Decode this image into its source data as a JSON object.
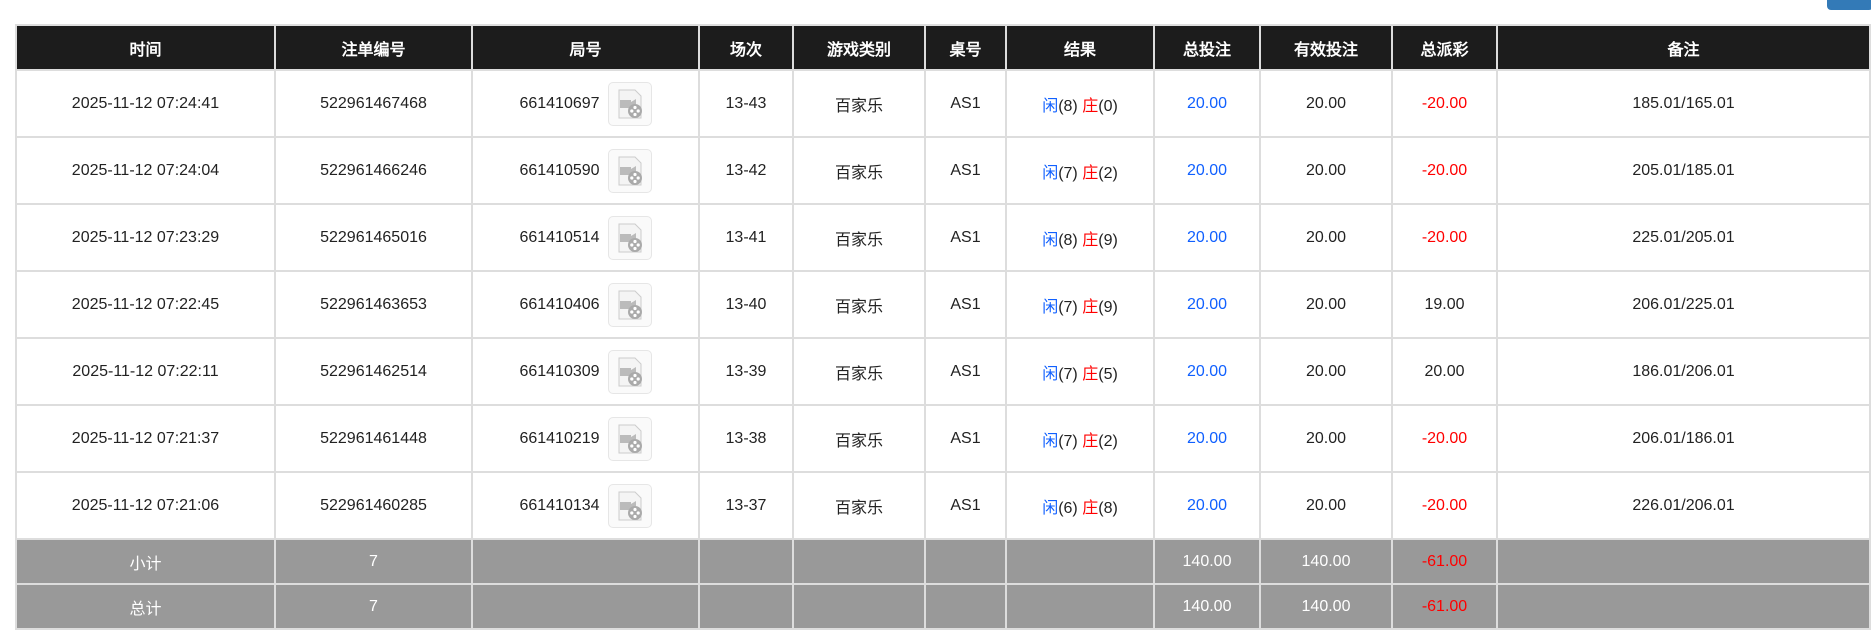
{
  "headers": [
    "时间",
    "注单编号",
    "局号",
    "场次",
    "游戏类别",
    "桌号",
    "结果",
    "总投注",
    "有效投注",
    "总派彩",
    "备注"
  ],
  "rows": [
    {
      "time": "2025-11-12 07:24:41",
      "bet_id": "522961467468",
      "round": "661410697",
      "shoe": "13-43",
      "game": "百家乐",
      "table": "AS1",
      "player_label": "闲",
      "player": "(8)",
      "banker_label": "庄",
      "banker": "(0)",
      "total_bet": "20.00",
      "valid_bet": "20.00",
      "payout": "-20.00",
      "payout_negative": true,
      "note": "185.01/165.01"
    },
    {
      "time": "2025-11-12 07:24:04",
      "bet_id": "522961466246",
      "round": "661410590",
      "shoe": "13-42",
      "game": "百家乐",
      "table": "AS1",
      "player_label": "闲",
      "player": "(7)",
      "banker_label": "庄",
      "banker": "(2)",
      "total_bet": "20.00",
      "valid_bet": "20.00",
      "payout": "-20.00",
      "payout_negative": true,
      "note": "205.01/185.01"
    },
    {
      "time": "2025-11-12 07:23:29",
      "bet_id": "522961465016",
      "round": "661410514",
      "shoe": "13-41",
      "game": "百家乐",
      "table": "AS1",
      "player_label": "闲",
      "player": "(8)",
      "banker_label": "庄",
      "banker": "(9)",
      "total_bet": "20.00",
      "valid_bet": "20.00",
      "payout": "-20.00",
      "payout_negative": true,
      "note": "225.01/205.01"
    },
    {
      "time": "2025-11-12 07:22:45",
      "bet_id": "522961463653",
      "round": "661410406",
      "shoe": "13-40",
      "game": "百家乐",
      "table": "AS1",
      "player_label": "闲",
      "player": "(7)",
      "banker_label": "庄",
      "banker": "(9)",
      "total_bet": "20.00",
      "valid_bet": "20.00",
      "payout": "19.00",
      "payout_negative": false,
      "note": "206.01/225.01"
    },
    {
      "time": "2025-11-12 07:22:11",
      "bet_id": "522961462514",
      "round": "661410309",
      "shoe": "13-39",
      "game": "百家乐",
      "table": "AS1",
      "player_label": "闲",
      "player": "(7)",
      "banker_label": "庄",
      "banker": "(5)",
      "total_bet": "20.00",
      "valid_bet": "20.00",
      "payout": "20.00",
      "payout_negative": false,
      "note": "186.01/206.01"
    },
    {
      "time": "2025-11-12 07:21:37",
      "bet_id": "522961461448",
      "round": "661410219",
      "shoe": "13-38",
      "game": "百家乐",
      "table": "AS1",
      "player_label": "闲",
      "player": "(7)",
      "banker_label": "庄",
      "banker": "(2)",
      "total_bet": "20.00",
      "valid_bet": "20.00",
      "payout": "-20.00",
      "payout_negative": true,
      "note": "206.01/186.01"
    },
    {
      "time": "2025-11-12 07:21:06",
      "bet_id": "522961460285",
      "round": "661410134",
      "shoe": "13-37",
      "game": "百家乐",
      "table": "AS1",
      "player_label": "闲",
      "player": "(6)",
      "banker_label": "庄",
      "banker": "(8)",
      "total_bet": "20.00",
      "valid_bet": "20.00",
      "payout": "-20.00",
      "payout_negative": true,
      "note": "226.01/206.01"
    }
  ],
  "footer": [
    {
      "label": "小计",
      "count": "7",
      "total_bet": "140.00",
      "valid_bet": "140.00",
      "payout": "-61.00"
    },
    {
      "label": "总计",
      "count": "7",
      "total_bet": "140.00",
      "valid_bet": "140.00",
      "payout": "-61.00"
    }
  ],
  "colors": {
    "header_bg": "#1c1c1c",
    "footer_bg": "#999999",
    "blue": "#1060ff",
    "red": "#ff0000",
    "button": "#337ab7"
  },
  "icons": {
    "replay": "video-file-icon"
  }
}
